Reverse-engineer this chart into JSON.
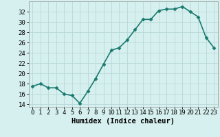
{
  "x": [
    0,
    1,
    2,
    3,
    4,
    5,
    6,
    7,
    8,
    9,
    10,
    11,
    12,
    13,
    14,
    15,
    16,
    17,
    18,
    19,
    20,
    21,
    22,
    23
  ],
  "y": [
    17.5,
    18.0,
    17.2,
    17.2,
    16.0,
    15.7,
    14.2,
    16.5,
    19.0,
    21.8,
    24.5,
    25.0,
    26.5,
    28.5,
    30.5,
    30.5,
    32.2,
    32.5,
    32.5,
    33.0,
    32.0,
    31.0,
    27.0,
    25.0
  ],
  "line_color": "#1a7a6e",
  "marker": "D",
  "marker_size": 2.5,
  "bg_color": "#d6f0ef",
  "grid_color": "#b8d8d6",
  "xlabel": "Humidex (Indice chaleur)",
  "ylabel_ticks": [
    14,
    16,
    18,
    20,
    22,
    24,
    26,
    28,
    30,
    32
  ],
  "ylim": [
    13.5,
    34.0
  ],
  "xlim": [
    -0.5,
    23.5
  ],
  "xlabel_fontsize": 7.5,
  "tick_fontsize": 6.5,
  "line_width": 1.2
}
